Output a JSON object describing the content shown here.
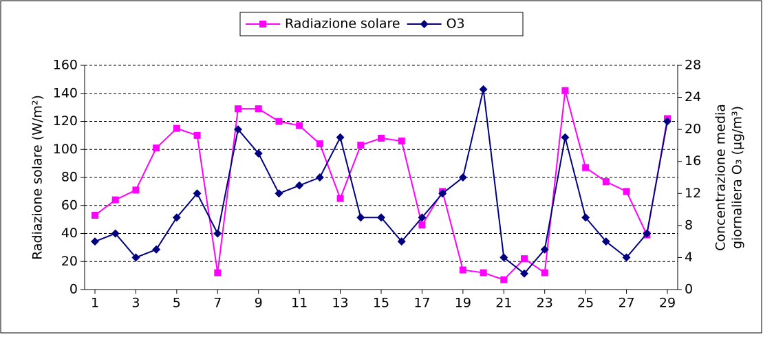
{
  "chart_data": {
    "type": "line",
    "ylabel": "Radiazione solare (W/m²)",
    "y2label": [
      "Concentrazione media",
      "giornaliera O₃ (µg/m³)"
    ],
    "x": [
      1,
      2,
      3,
      4,
      5,
      6,
      7,
      8,
      9,
      10,
      11,
      12,
      13,
      14,
      15,
      16,
      17,
      18,
      19,
      20,
      21,
      22,
      23,
      24,
      25,
      26,
      27,
      28,
      29
    ],
    "xlim": [
      1,
      29
    ],
    "xticks": [
      1,
      3,
      5,
      7,
      9,
      11,
      13,
      15,
      17,
      19,
      21,
      23,
      25,
      27,
      29
    ],
    "ylim": [
      0,
      160
    ],
    "yticks": [
      0,
      20,
      40,
      60,
      80,
      100,
      120,
      140,
      160
    ],
    "y2lim": [
      0,
      28
    ],
    "y2ticks": [
      0,
      4,
      8,
      12,
      16,
      20,
      24,
      28
    ],
    "grid": true,
    "legend": "top",
    "series": [
      {
        "name": "Radiazione solare",
        "color": "#ff00ff",
        "marker": "square",
        "values": [
          53,
          64,
          71,
          101,
          115,
          110,
          12,
          129,
          129,
          120,
          117,
          104,
          65,
          103,
          108,
          106,
          46,
          70,
          14,
          12,
          7,
          22,
          12,
          142,
          87,
          77,
          70,
          39,
          122
        ]
      },
      {
        "name": "O3",
        "color": "#000080",
        "marker": "diamond",
        "axis": "y2",
        "values": [
          6,
          7,
          4,
          5,
          9,
          12,
          7,
          20,
          17,
          12,
          13,
          14,
          19,
          9,
          9,
          6,
          9,
          12,
          14,
          25,
          4,
          2,
          5,
          19,
          9,
          6,
          4,
          7,
          21
        ]
      }
    ]
  }
}
